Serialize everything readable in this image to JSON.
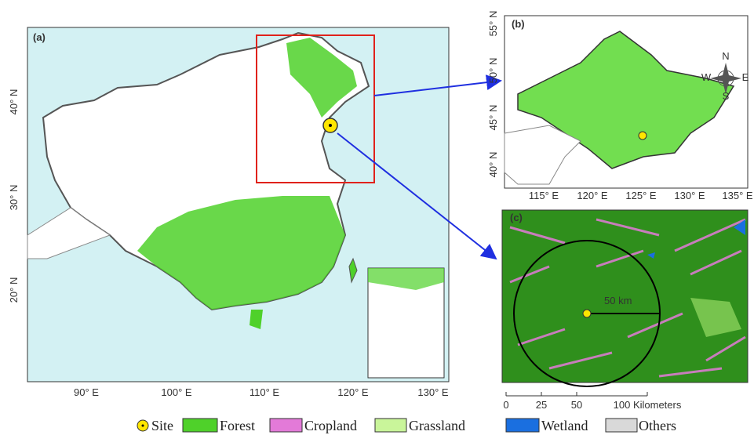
{
  "panels": {
    "a": {
      "label": "(a)",
      "lat_labels": [
        "40° N",
        "30° N",
        "20° N"
      ],
      "lon_labels": [
        "90° E",
        "100° E",
        "110° E",
        "120° E",
        "130° E"
      ]
    },
    "b": {
      "label": "(b)",
      "lat_labels": [
        "55° N",
        "50° N",
        "45° N",
        "40° N"
      ],
      "lon_labels": [
        "115° E",
        "120° E",
        "125° E",
        "130° E",
        "135° E"
      ],
      "compass": [
        "N",
        "E",
        "S",
        "W"
      ]
    },
    "c": {
      "label": "(c)",
      "radius_label": "50 km",
      "scale_labels": [
        "0",
        "25",
        "50",
        "100 Kilometers"
      ]
    }
  },
  "legend": [
    "Site",
    "Forest",
    "Cropland",
    "Grassland",
    "Wetland",
    "Others"
  ]
}
